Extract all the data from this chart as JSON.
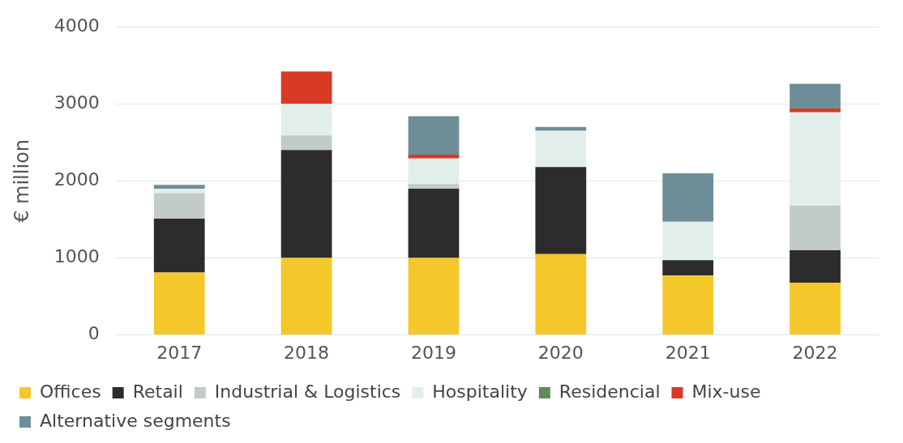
{
  "chart_data": {
    "type": "bar",
    "stacked": true,
    "ylabel": "€ million",
    "categories": [
      "2017",
      "2018",
      "2019",
      "2020",
      "2021",
      "2022"
    ],
    "ylim": [
      0,
      4000
    ],
    "yticks": [
      0,
      1000,
      2000,
      3000,
      4000
    ],
    "grid": "y",
    "legend": "bottom",
    "series": [
      {
        "name": "Offices",
        "color": "#f4c82a",
        "values": [
          810,
          1000,
          1000,
          1050,
          770,
          680
        ]
      },
      {
        "name": "Retail",
        "color": "#2c2c2e",
        "values": [
          700,
          1400,
          900,
          1130,
          200,
          420
        ]
      },
      {
        "name": "Industrial & Logistics",
        "color": "#c3cbca",
        "values": [
          330,
          190,
          60,
          0,
          0,
          580
        ]
      },
      {
        "name": "Hospitality",
        "color": "#e2eeec",
        "values": [
          60,
          410,
          330,
          470,
          500,
          1210
        ]
      },
      {
        "name": "Residencial",
        "color": "#5e8a5e",
        "values": [
          0,
          0,
          0,
          0,
          0,
          0
        ]
      },
      {
        "name": "Mix-use",
        "color": "#d93a25",
        "values": [
          0,
          420,
          50,
          0,
          0,
          50
        ]
      },
      {
        "name": "Alternative segments",
        "color": "#6d8e98",
        "values": [
          50,
          0,
          500,
          50,
          630,
          320
        ]
      }
    ]
  }
}
